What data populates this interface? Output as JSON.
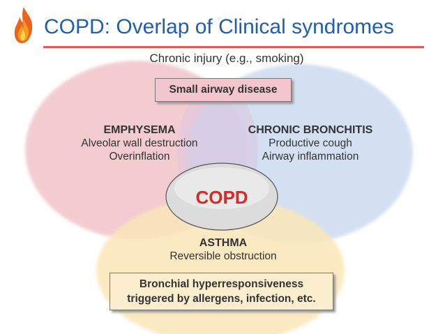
{
  "title": "COPD: Overlap of Clinical syndromes",
  "colors": {
    "title": "#1f5fae",
    "rule": "#e3585a",
    "emphysema_circle": "#f2c4cb",
    "bronchitis_circle": "#c9d9f0",
    "asthma_circle": "#fbe6b8",
    "copd_text": "#d62a27"
  },
  "top_label": "Chronic injury (e.g., smoking)",
  "small_airway_box": "Small airway disease",
  "emphysema": {
    "heading": "EMPHYSEMA",
    "lines": [
      "Alveolar wall destruction",
      "Overinflation"
    ]
  },
  "chronic_bronchitis": {
    "heading": "CHRONIC BRONCHITIS",
    "lines": [
      "Productive cough",
      "Airway inflammation"
    ]
  },
  "center": "COPD",
  "asthma": {
    "heading": "ASTHMA",
    "lines": [
      "Reversible obstruction"
    ]
  },
  "bronchial_box": {
    "lines": [
      "Bronchial hyperresponsiveness",
      "triggered by allergens, infection, etc."
    ]
  },
  "icons": {
    "logo": "flame-icon"
  }
}
